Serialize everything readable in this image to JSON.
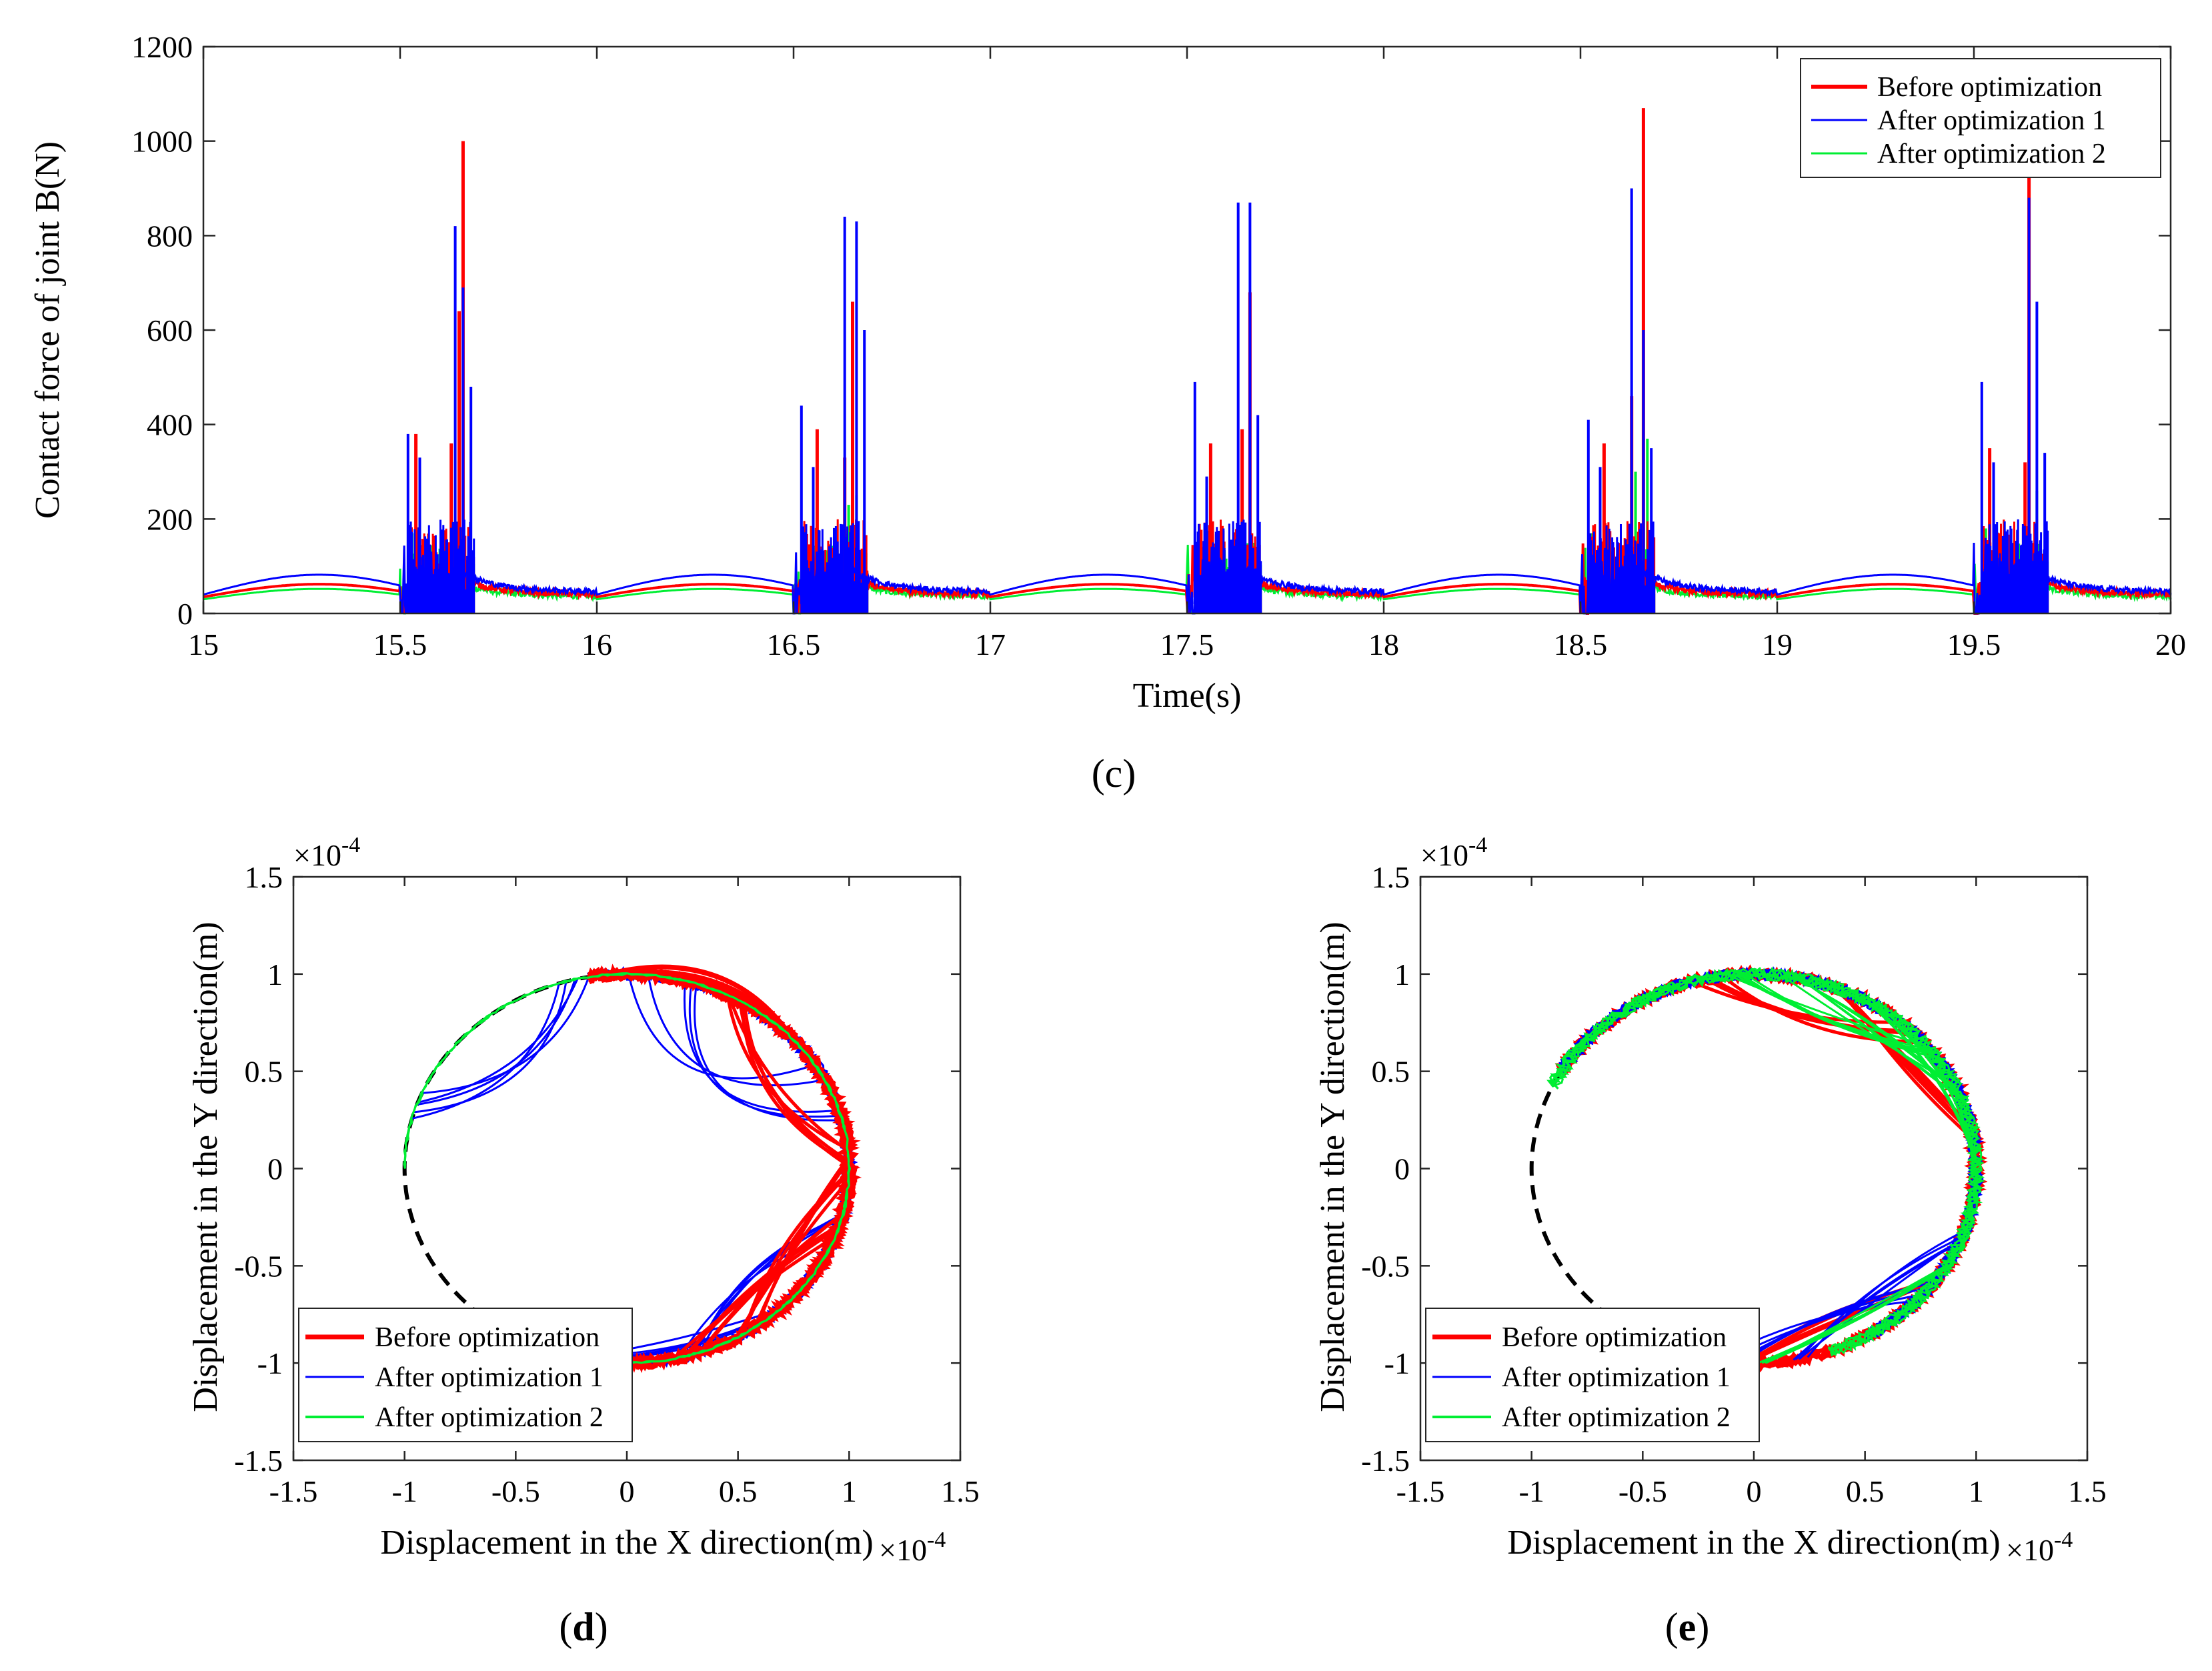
{
  "panels": {
    "c": {
      "label": "(c)",
      "label_letter": "c"
    },
    "d": {
      "label_letter": "d"
    },
    "e": {
      "label_letter": "e"
    }
  },
  "colors": {
    "before": "#ff0000",
    "after1": "#0000ff",
    "after2": "#00ee33",
    "reference": "#000000"
  },
  "chart_data": [
    {
      "id": "c",
      "type": "line",
      "title": "",
      "xlabel": "Time(s)",
      "ylabel": "Contact force of joint B(N)",
      "xlim": [
        15,
        20
      ],
      "ylim": [
        0,
        1200
      ],
      "xticks": [
        "15",
        "15.5",
        "16",
        "16.5",
        "17",
        "17.5",
        "18",
        "18.5",
        "19",
        "19.5",
        "20"
      ],
      "yticks": [
        "0",
        "200",
        "400",
        "600",
        "800",
        "1000",
        "1200"
      ],
      "legend": [
        "Before optimization",
        "After optimization 1",
        "After optimization 2"
      ],
      "legend_position": "top-right",
      "cycle_start_times": [
        15.5,
        16.5,
        17.5,
        18.5,
        19.5
      ],
      "baseline_levels": {
        "before": {
          "min": 35,
          "max": 62
        },
        "after1": {
          "min": 40,
          "max": 82
        },
        "after2": {
          "min": 30,
          "max": 52
        }
      },
      "series": [
        {
          "name": "Before optimization",
          "color_key": "before",
          "peaks": [
            {
              "t": 15.54,
              "v": 380
            },
            {
              "t": 15.63,
              "v": 360
            },
            {
              "t": 15.65,
              "v": 640
            },
            {
              "t": 15.66,
              "v": 1000
            },
            {
              "t": 16.56,
              "v": 390
            },
            {
              "t": 16.63,
              "v": 330
            },
            {
              "t": 16.65,
              "v": 660
            },
            {
              "t": 17.56,
              "v": 360
            },
            {
              "t": 17.64,
              "v": 390
            },
            {
              "t": 17.66,
              "v": 680
            },
            {
              "t": 18.56,
              "v": 360
            },
            {
              "t": 18.63,
              "v": 460
            },
            {
              "t": 18.66,
              "v": 1070
            },
            {
              "t": 19.54,
              "v": 350
            },
            {
              "t": 19.63,
              "v": 320
            },
            {
              "t": 19.64,
              "v": 930
            }
          ]
        },
        {
          "name": "After optimization 1",
          "color_key": "after1",
          "peaks": [
            {
              "t": 15.52,
              "v": 380
            },
            {
              "t": 15.55,
              "v": 330
            },
            {
              "t": 15.64,
              "v": 820
            },
            {
              "t": 15.66,
              "v": 690
            },
            {
              "t": 15.68,
              "v": 480
            },
            {
              "t": 16.52,
              "v": 440
            },
            {
              "t": 16.55,
              "v": 310
            },
            {
              "t": 16.63,
              "v": 840
            },
            {
              "t": 16.66,
              "v": 830
            },
            {
              "t": 16.68,
              "v": 600
            },
            {
              "t": 17.52,
              "v": 490
            },
            {
              "t": 17.55,
              "v": 290
            },
            {
              "t": 17.63,
              "v": 870
            },
            {
              "t": 17.66,
              "v": 870
            },
            {
              "t": 17.68,
              "v": 420
            },
            {
              "t": 18.52,
              "v": 410
            },
            {
              "t": 18.55,
              "v": 310
            },
            {
              "t": 18.63,
              "v": 900
            },
            {
              "t": 18.66,
              "v": 600
            },
            {
              "t": 18.68,
              "v": 350
            },
            {
              "t": 19.52,
              "v": 490
            },
            {
              "t": 19.55,
              "v": 320
            },
            {
              "t": 19.64,
              "v": 880
            },
            {
              "t": 19.66,
              "v": 660
            },
            {
              "t": 19.68,
              "v": 340
            }
          ]
        },
        {
          "name": "After optimization 2",
          "color_key": "after2",
          "peaks": [
            {
              "t": 15.53,
              "v": 170
            },
            {
              "t": 15.56,
              "v": 140
            },
            {
              "t": 15.64,
              "v": 170
            },
            {
              "t": 15.66,
              "v": 240
            },
            {
              "t": 16.53,
              "v": 170
            },
            {
              "t": 16.56,
              "v": 150
            },
            {
              "t": 16.64,
              "v": 230
            },
            {
              "t": 16.66,
              "v": 250
            },
            {
              "t": 17.53,
              "v": 140
            },
            {
              "t": 17.56,
              "v": 130
            },
            {
              "t": 17.64,
              "v": 350
            },
            {
              "t": 17.66,
              "v": 330
            },
            {
              "t": 18.53,
              "v": 170
            },
            {
              "t": 18.56,
              "v": 150
            },
            {
              "t": 18.64,
              "v": 300
            },
            {
              "t": 18.67,
              "v": 370
            },
            {
              "t": 19.53,
              "v": 180
            },
            {
              "t": 19.56,
              "v": 170
            },
            {
              "t": 19.64,
              "v": 430
            },
            {
              "t": 19.66,
              "v": 260
            }
          ]
        }
      ]
    },
    {
      "id": "d",
      "type": "line",
      "title": "",
      "xlabel": "Displacement in the X direction(m)",
      "ylabel": "Displacement in the Y direction(m)",
      "axis_multiplier": "×10",
      "axis_multiplier_exp": "-4",
      "xlim": [
        -1.5,
        1.5
      ],
      "ylim": [
        -1.5,
        1.5
      ],
      "xticks": [
        "-1.5",
        "-1",
        "-0.5",
        "0",
        "0.5",
        "1",
        "1.5"
      ],
      "yticks": [
        "-1.5",
        "-1",
        "-0.5",
        "0",
        "0.5",
        "1",
        "1.5"
      ],
      "legend": [
        "Before optimization",
        "After optimization 1",
        "After optimization 2"
      ],
      "legend_position": "bottom-left",
      "reference_circle_radius": 1.0,
      "series": [
        {
          "name": "Before optimization",
          "color_key": "before",
          "arc_deg": [
            -105,
            100
          ],
          "excursions": [
            {
              "x": 0.55,
              "y": 0.35
            },
            {
              "x": 0.7,
              "y": -0.4
            },
            {
              "x": 0.6,
              "y": -0.6
            },
            {
              "x": 0.45,
              "y": 1.12
            }
          ]
        },
        {
          "name": "After optimization 1",
          "color_key": "after1",
          "arc_deg": [
            -100,
            100
          ],
          "excursions": [
            {
              "x": -0.38,
              "y": 0.42
            },
            {
              "x": 0.2,
              "y": 0.25
            },
            {
              "x": 0.25,
              "y": -0.95
            },
            {
              "x": 0.5,
              "y": -0.5
            }
          ]
        },
        {
          "name": "After optimization 2",
          "color_key": "after2",
          "arc_deg": [
            -95,
            180
          ],
          "excursions": []
        }
      ]
    },
    {
      "id": "e",
      "type": "line",
      "title": "",
      "xlabel": "Displacement in the X direction(m)",
      "ylabel": "Displacement in the Y direction(m)",
      "axis_multiplier": "×10",
      "axis_multiplier_exp": "-4",
      "xlim": [
        -1.5,
        1.5
      ],
      "ylim": [
        -1.5,
        1.5
      ],
      "xticks": [
        "-1.5",
        "-1",
        "-0.5",
        "0",
        "0.5",
        "1",
        "1.5"
      ],
      "yticks": [
        "-1.5",
        "-1",
        "-0.5",
        "0",
        "0.5",
        "1",
        "1.5"
      ],
      "legend": [
        "Before optimization",
        "After optimization 1",
        "After optimization 2"
      ],
      "legend_position": "bottom-left",
      "reference_circle_radius": 1.0,
      "series": [
        {
          "name": "Before optimization",
          "color_key": "before",
          "arc_deg": [
            -95,
            150
          ],
          "excursions": [
            {
              "x": 0.2,
              "y": 0.7
            },
            {
              "x": 0.65,
              "y": 0.55
            },
            {
              "x": 0.35,
              "y": -0.75
            }
          ]
        },
        {
          "name": "After optimization 1",
          "color_key": "after1",
          "arc_deg": [
            -60,
            150
          ],
          "excursions": [
            {
              "x": 0.5,
              "y": -0.6
            },
            {
              "x": 0.3,
              "y": -0.75
            }
          ]
        },
        {
          "name": "After optimization 2",
          "color_key": "after2",
          "arc_deg": [
            -70,
            155
          ],
          "excursions": [
            {
              "x": 0.35,
              "y": 0.75
            },
            {
              "x": 0.55,
              "y": 0.7
            },
            {
              "x": 0.9,
              "y": 0.5
            },
            {
              "x": 0.45,
              "y": -0.8
            }
          ]
        }
      ]
    }
  ]
}
